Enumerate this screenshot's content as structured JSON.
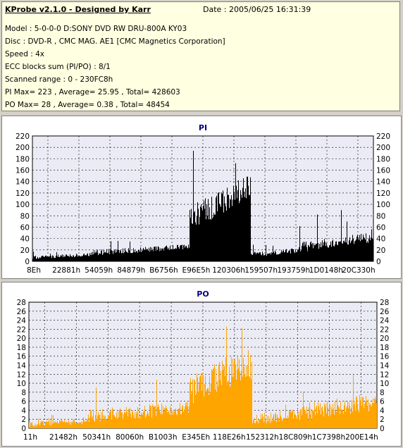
{
  "header": {
    "title": "KProbe v2.1.0 - Designed by Karr",
    "date": "Date : 2005/06/25 16:31:39",
    "lines": [
      "Model : 5-0-0-0 D:SONY    DVD RW DRU-800A  KY03",
      "Disc : DVD-R , CMC MAG. AE1 [CMC Magnetics Corporation]",
      "Speed : 4x",
      "ECC blocks sum (PI/PO) : 8/1",
      "Scanned range : 0 - 230FC8h",
      "PI Max= 223 , Average= 25.95 , Total= 428603",
      "PO Max= 28 , Average= 0.38 , Total= 48454"
    ]
  },
  "colors": {
    "pi_bars": "#000000",
    "po_bars": "#ffa500",
    "plot_bg": "#ebebf5",
    "title_blue": "#000080"
  },
  "chart_data": [
    {
      "type": "bar",
      "title": "PI",
      "ylim": [
        0,
        220
      ],
      "yticks": [
        0,
        20,
        40,
        60,
        80,
        100,
        120,
        140,
        160,
        180,
        200,
        220
      ],
      "xtick_labels": [
        "8Eh",
        "22881h",
        "54059h",
        "84879h",
        "B6756h",
        "E96E5h",
        "120306h",
        "159507h",
        "193759h",
        "1D0148h",
        "20C330h"
      ],
      "grid": true,
      "segments": [
        {
          "x_start": 0.0,
          "x_end": 0.17,
          "base": 8,
          "noise": 6,
          "peak": 18
        },
        {
          "x_start": 0.17,
          "x_end": 0.46,
          "base": 18,
          "noise": 10,
          "peak": 38
        },
        {
          "x_start": 0.46,
          "x_end": 0.64,
          "base": 95,
          "noise": 45,
          "peak": 223
        },
        {
          "x_start": 0.64,
          "x_end": 0.78,
          "base": 14,
          "noise": 10,
          "peak": 30
        },
        {
          "x_start": 0.78,
          "x_end": 1.0,
          "base": 30,
          "noise": 18,
          "peak": 90
        }
      ]
    },
    {
      "type": "bar",
      "title": "PO",
      "ylim": [
        0,
        28
      ],
      "yticks": [
        0,
        2,
        4,
        6,
        8,
        10,
        12,
        14,
        16,
        18,
        20,
        22,
        24,
        26,
        28
      ],
      "xtick_labels": [
        "11h",
        "21482h",
        "50341h",
        "80060h",
        "B1003h",
        "E345Eh",
        "118E26h",
        "152312h",
        "18C809h",
        "1C7398h",
        "200E14h"
      ],
      "grid": true,
      "segments": [
        {
          "x_start": 0.0,
          "x_end": 0.17,
          "base": 1,
          "noise": 1.2,
          "peak": 3
        },
        {
          "x_start": 0.17,
          "x_end": 0.46,
          "base": 3,
          "noise": 3,
          "peak": 12
        },
        {
          "x_start": 0.46,
          "x_end": 0.64,
          "base": 10,
          "noise": 7,
          "peak": 28
        },
        {
          "x_start": 0.64,
          "x_end": 0.78,
          "base": 2,
          "noise": 2.5,
          "peak": 8
        },
        {
          "x_start": 0.78,
          "x_end": 1.0,
          "base": 4,
          "noise": 4,
          "peak": 18
        }
      ]
    }
  ]
}
